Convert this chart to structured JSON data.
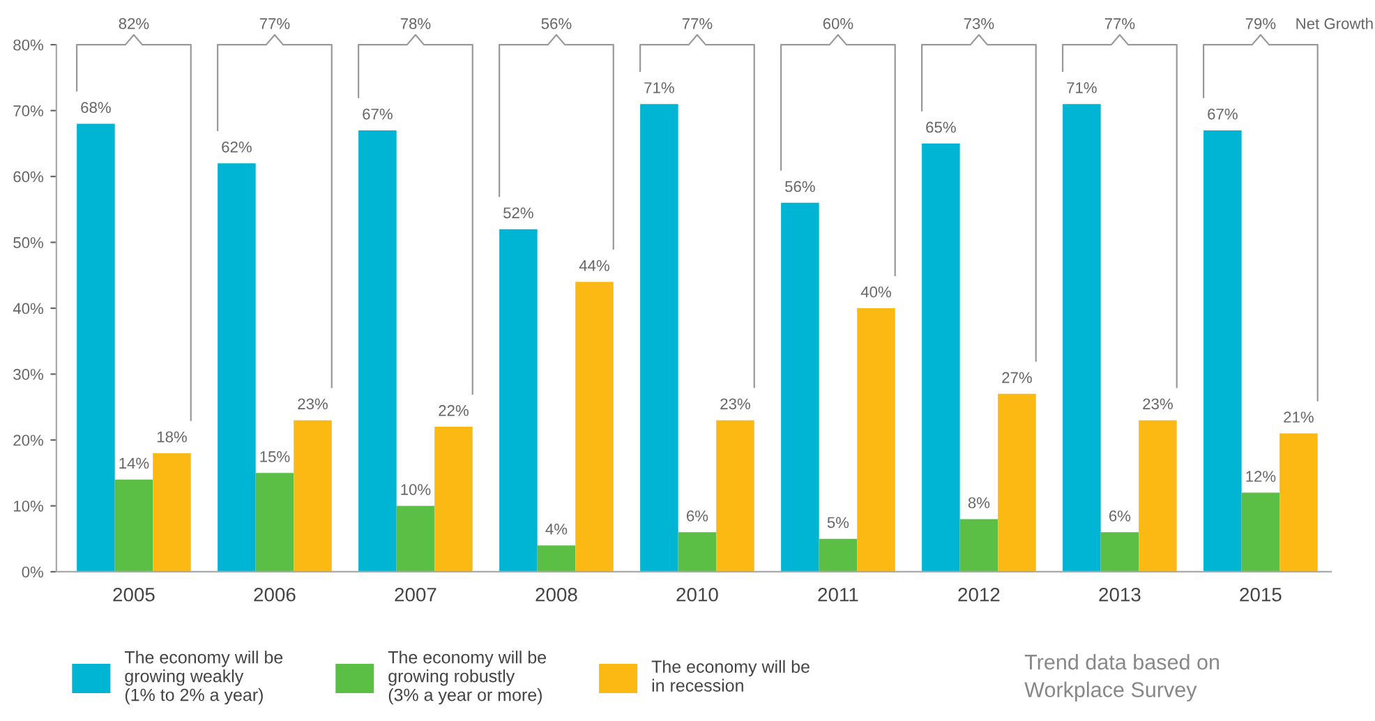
{
  "chart_data": {
    "type": "bar",
    "categories": [
      "2005",
      "2006",
      "2007",
      "2008",
      "2010",
      "2011",
      "2012",
      "2013",
      "2015"
    ],
    "series": [
      {
        "name": "The economy will be\ngrowing weakly\n(1% to 2% a year)",
        "color": "#00b4d4",
        "values": [
          68,
          62,
          67,
          52,
          71,
          56,
          65,
          71,
          67
        ],
        "value_labels": [
          "68%",
          "62%",
          "67%",
          "52%",
          "71%",
          "56%",
          "65%",
          "71%",
          "67%"
        ]
      },
      {
        "name": "The economy will be\ngrowing robustly\n(3% a year or more)",
        "color": "#5cbf45",
        "values": [
          14,
          15,
          10,
          4,
          6,
          5,
          8,
          6,
          12
        ],
        "value_labels": [
          "14%",
          "15%",
          "10%",
          "4%",
          "6%",
          "5%",
          "8%",
          "6%",
          "12%"
        ]
      },
      {
        "name": "The economy will be\nin recession",
        "color": "#fdb913",
        "values": [
          18,
          23,
          22,
          44,
          23,
          40,
          27,
          23,
          21
        ],
        "value_labels": [
          "18%",
          "23%",
          "22%",
          "44%",
          "23%",
          "40%",
          "27%",
          "23%",
          "21%"
        ]
      }
    ],
    "ylim": [
      0,
      80
    ],
    "yticks": [
      {
        "value": 0,
        "label": "0%"
      },
      {
        "value": 10,
        "label": "10%"
      },
      {
        "value": 20,
        "label": "20%"
      },
      {
        "value": 30,
        "label": "30%"
      },
      {
        "value": 40,
        "label": "40%"
      },
      {
        "value": 50,
        "label": "50%"
      },
      {
        "value": 60,
        "label": "60%"
      },
      {
        "value": 70,
        "label": "70%"
      },
      {
        "value": 80,
        "label": "80%"
      }
    ],
    "grid": false,
    "legend": "bottom",
    "annotations": [
      "82%",
      "77%",
      "78%",
      "56%",
      "77%",
      "60%",
      "73%",
      "77%",
      "79%",
      "Net Growth",
      "Trend data based on\nWorkplace Survey"
    ]
  }
}
